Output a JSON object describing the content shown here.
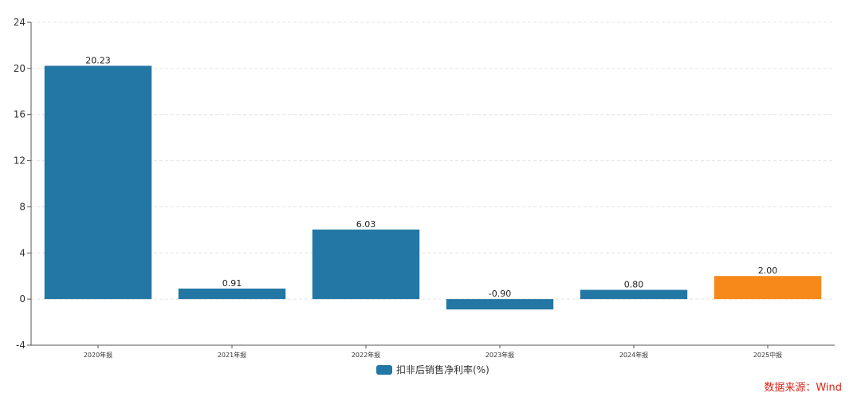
{
  "chart_data": {
    "type": "bar",
    "categories": [
      "2020年报",
      "2021年报",
      "2022年报",
      "2023年报",
      "2024年报",
      "2025中报"
    ],
    "series": [
      {
        "name": "扣非后销售净利率(%)",
        "values": [
          20.23,
          0.91,
          6.03,
          -0.9,
          0.8,
          2.0
        ],
        "labels": [
          "20.23",
          "0.91",
          "6.03",
          "-0.90",
          "0.80",
          "2.00"
        ],
        "color": "#2277a4",
        "highlight_color": "#f7881a",
        "highlight_index": 5
      }
    ],
    "ylim": [
      -4,
      24
    ],
    "yticks": [
      -4,
      0,
      4,
      8,
      12,
      16,
      20,
      24
    ],
    "grid": true,
    "legend_position": "bottom-center"
  },
  "legend": {
    "label": "扣非后销售净利率(%)",
    "color": "#2277a4"
  },
  "source": "数据来源：Wind"
}
